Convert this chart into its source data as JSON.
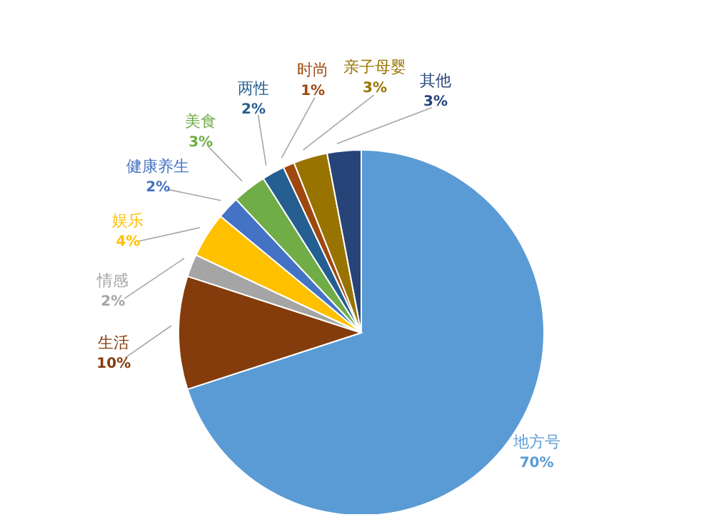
{
  "chart_data": {
    "type": "pie",
    "categories": [
      "地方号",
      "生活",
      "情感",
      "娱乐",
      "健康养生",
      "美食",
      "两性",
      "时尚",
      "亲子母婴",
      "其他"
    ],
    "values": [
      70,
      10,
      2,
      4,
      2,
      3,
      2,
      1,
      3,
      3
    ],
    "value_labels": [
      "70%",
      "10%",
      "2%",
      "4%",
      "2%",
      "3%",
      "2%",
      "1%",
      "3%",
      "3%"
    ],
    "colors": [
      "#5b9bd5",
      "#843c0c",
      "#a5a5a5",
      "#ffc000",
      "#4472c4",
      "#70ad47",
      "#255e91",
      "#9e480e",
      "#997300",
      "#264478"
    ],
    "legend": false
  }
}
